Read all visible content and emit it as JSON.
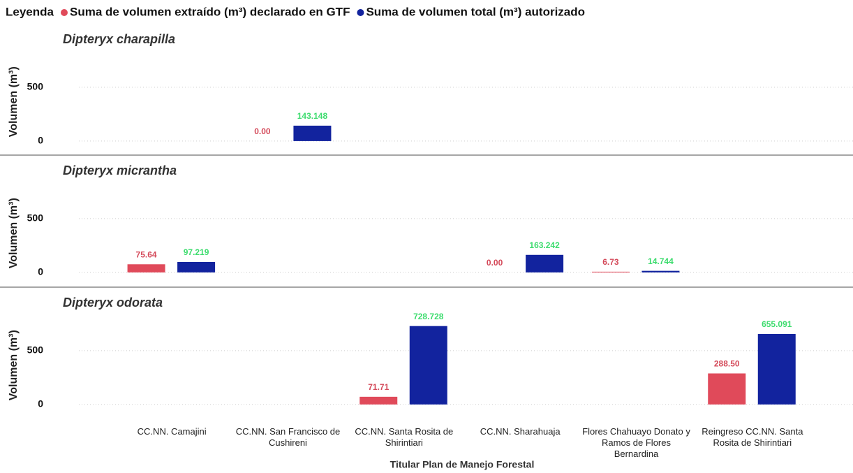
{
  "chart_data": {
    "type": "bar",
    "legend_title": "Leyenda",
    "xlabel": "Titular Plan de Manejo Forestal",
    "ylabel": "Volumen (m³)",
    "categories": [
      "CC.NN. Camajini",
      "CC.NN. San Francisco de Cushireni",
      "CC.NN. Santa Rosita de Shirintiari",
      "CC.NN. Sharahuaja",
      "Flores Chahuayo Donato y Ramos de Flores Bernardina",
      "Reingreso CC.NN. Santa Rosita de Shirintiari"
    ],
    "series": [
      {
        "name": "Suma de volumen extraído (m³) declarado en GTF",
        "color": "#e04a5a",
        "label_color": "#d44a5a"
      },
      {
        "name": "Suma de volumen total (m³) autorizado",
        "color": "#12239e",
        "label_color": "#3ddc6e"
      }
    ],
    "ylim": [
      -120,
      850
    ],
    "yticks": [
      0,
      500
    ],
    "grid": true,
    "facets": [
      {
        "title": "Dipteryx charapilla",
        "series": [
          {
            "values": [
              null,
              0,
              null,
              null,
              null,
              null
            ],
            "value_labels": [
              null,
              "0.00",
              null,
              null,
              null,
              null
            ]
          },
          {
            "values": [
              null,
              143.148,
              null,
              null,
              null,
              null
            ],
            "value_labels": [
              null,
              "143.148",
              null,
              null,
              null,
              null
            ]
          }
        ]
      },
      {
        "title": "Dipteryx micrantha",
        "series": [
          {
            "values": [
              75.64,
              null,
              null,
              0,
              6.73,
              null
            ],
            "value_labels": [
              "75.64",
              null,
              null,
              "0.00",
              "6.73",
              null
            ]
          },
          {
            "values": [
              97.219,
              null,
              null,
              163.242,
              14.744,
              null
            ],
            "value_labels": [
              "97.219",
              null,
              null,
              "163.242",
              "14.744",
              null
            ]
          }
        ]
      },
      {
        "title": "Dipteryx odorata",
        "series": [
          {
            "values": [
              null,
              null,
              71.71,
              null,
              null,
              288.5
            ],
            "value_labels": [
              null,
              null,
              "71.71",
              null,
              null,
              "288.50"
            ]
          },
          {
            "values": [
              null,
              null,
              728.728,
              null,
              null,
              655.091
            ],
            "value_labels": [
              null,
              null,
              "728.728",
              null,
              null,
              "655.091"
            ]
          }
        ]
      }
    ]
  }
}
